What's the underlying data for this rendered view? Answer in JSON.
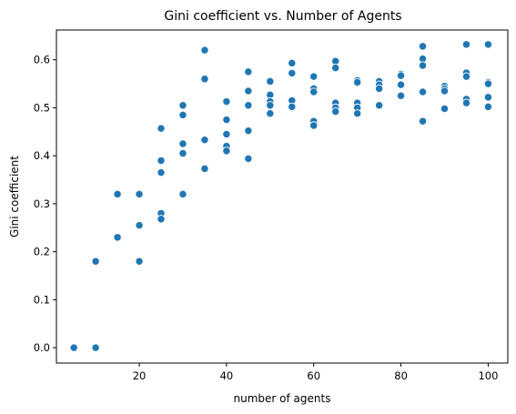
{
  "chart_data": {
    "type": "scatter",
    "title": "Gini coefficient vs. Number of Agents",
    "xlabel": "number of agents",
    "ylabel": "Gini coefficient",
    "xlim": [
      1,
      104.5
    ],
    "ylim": [
      -0.032,
      0.662
    ],
    "xticks": [
      20,
      40,
      60,
      80,
      100
    ],
    "yticks": [
      0.0,
      0.1,
      0.2,
      0.3,
      0.4,
      0.5,
      0.6
    ],
    "xtick_labels": [
      "20",
      "40",
      "60",
      "80",
      "100"
    ],
    "ytick_labels": [
      "0.0",
      "0.1",
      "0.2",
      "0.3",
      "0.4",
      "0.5",
      "0.6"
    ],
    "grid": false,
    "legend": "none",
    "color": "#1f77b4",
    "points": [
      [
        5,
        0.0
      ],
      [
        10,
        0.18
      ],
      [
        10,
        0.0
      ],
      [
        15,
        0.32
      ],
      [
        15,
        0.23
      ],
      [
        20,
        0.32
      ],
      [
        20,
        0.255
      ],
      [
        20,
        0.18
      ],
      [
        25,
        0.457
      ],
      [
        25,
        0.39
      ],
      [
        25,
        0.365
      ],
      [
        25,
        0.28
      ],
      [
        25,
        0.268
      ],
      [
        30,
        0.505
      ],
      [
        30,
        0.485
      ],
      [
        30,
        0.425
      ],
      [
        30,
        0.405
      ],
      [
        30,
        0.32
      ],
      [
        35,
        0.62
      ],
      [
        35,
        0.56
      ],
      [
        35,
        0.433
      ],
      [
        35,
        0.373
      ],
      [
        40,
        0.513
      ],
      [
        40,
        0.475
      ],
      [
        40,
        0.445
      ],
      [
        40,
        0.42
      ],
      [
        40,
        0.41
      ],
      [
        45,
        0.575
      ],
      [
        45,
        0.535
      ],
      [
        45,
        0.505
      ],
      [
        45,
        0.452
      ],
      [
        45,
        0.394
      ],
      [
        50,
        0.555
      ],
      [
        50,
        0.527
      ],
      [
        50,
        0.513
      ],
      [
        50,
        0.505
      ],
      [
        50,
        0.488
      ],
      [
        55,
        0.593
      ],
      [
        55,
        0.572
      ],
      [
        55,
        0.515
      ],
      [
        55,
        0.502
      ],
      [
        60,
        0.565
      ],
      [
        60,
        0.54
      ],
      [
        60,
        0.533
      ],
      [
        60,
        0.472
      ],
      [
        60,
        0.463
      ],
      [
        65,
        0.597
      ],
      [
        65,
        0.583
      ],
      [
        65,
        0.51
      ],
      [
        65,
        0.5
      ],
      [
        65,
        0.492
      ],
      [
        70,
        0.557
      ],
      [
        70,
        0.553
      ],
      [
        70,
        0.51
      ],
      [
        70,
        0.5
      ],
      [
        70,
        0.488
      ],
      [
        75,
        0.555
      ],
      [
        75,
        0.548
      ],
      [
        75,
        0.54
      ],
      [
        75,
        0.505
      ],
      [
        80,
        0.57
      ],
      [
        80,
        0.567
      ],
      [
        80,
        0.548
      ],
      [
        80,
        0.525
      ],
      [
        85,
        0.628
      ],
      [
        85,
        0.602
      ],
      [
        85,
        0.588
      ],
      [
        85,
        0.533
      ],
      [
        85,
        0.472
      ],
      [
        90,
        0.545
      ],
      [
        90,
        0.54
      ],
      [
        90,
        0.535
      ],
      [
        90,
        0.498
      ],
      [
        95,
        0.632
      ],
      [
        95,
        0.573
      ],
      [
        95,
        0.565
      ],
      [
        95,
        0.518
      ],
      [
        95,
        0.51
      ],
      [
        100,
        0.632
      ],
      [
        100,
        0.553
      ],
      [
        100,
        0.55
      ],
      [
        100,
        0.522
      ],
      [
        100,
        0.502
      ]
    ]
  }
}
